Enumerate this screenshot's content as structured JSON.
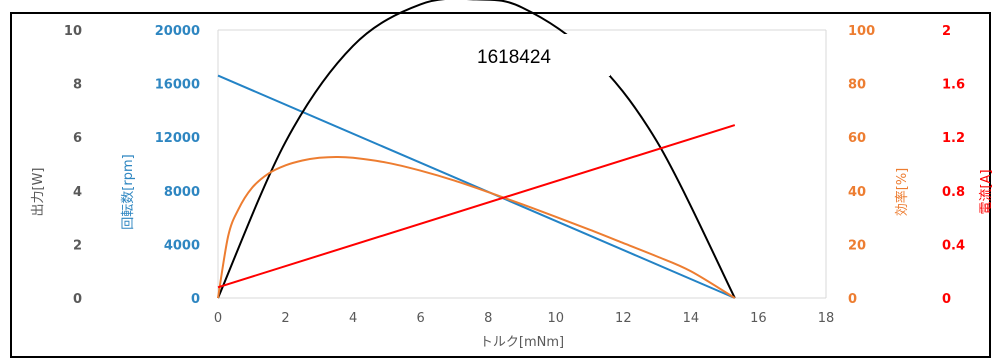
{
  "chart_data": {
    "type": "line",
    "title": "1618424",
    "xlabel": "トルク[mNm]",
    "xlim": [
      0,
      18
    ],
    "x_ticks": [
      "0",
      "2",
      "4",
      "6",
      "8",
      "10",
      "12",
      "14",
      "16",
      "18"
    ],
    "axes": {
      "power": {
        "label": "出力[W]",
        "range": [
          0,
          10
        ],
        "ticks": [
          "0",
          "2",
          "4",
          "6",
          "8",
          "10"
        ],
        "color": "#595959"
      },
      "speed": {
        "label": "回転数[rpm]",
        "range": [
          0,
          20000
        ],
        "ticks": [
          "0",
          "4000",
          "8000",
          "12000",
          "16000",
          "20000"
        ],
        "color": "#2E86C1"
      },
      "efficiency": {
        "label": "効率[%]",
        "range": [
          0,
          100
        ],
        "ticks": [
          "0",
          "20",
          "40",
          "60",
          "80",
          "100"
        ],
        "color": "#ED7D31"
      },
      "current": {
        "label": "電流[A]",
        "range": [
          0,
          2
        ],
        "ticks": [
          "0",
          "0.4",
          "0.8",
          "1.2",
          "1.6",
          "2"
        ],
        "color": "#FF0000"
      }
    },
    "series": [
      {
        "axis": "speed",
        "color": "#2383C6",
        "x": [
          0,
          15.3
        ],
        "y": [
          16600,
          0
        ]
      },
      {
        "axis": "power",
        "color": "#000000",
        "x": [
          0,
          2,
          4,
          6,
          7.65,
          9,
          11,
          13,
          15.3
        ],
        "y": [
          0,
          5.83,
          9.41,
          10.96,
          11.14,
          10.84,
          9.09,
          5.83,
          0
        ]
      },
      {
        "axis": "efficiency",
        "color": "#ED7D31",
        "x": [
          0,
          0.3,
          0.6,
          1,
          1.5,
          2,
          2.5,
          3,
          3.5,
          4,
          5,
          6,
          7,
          8,
          9,
          10,
          11,
          12,
          13,
          14,
          15.3
        ],
        "y": [
          0,
          23,
          33,
          41,
          46.5,
          49.5,
          51.3,
          52.3,
          52.6,
          52.3,
          50.5,
          47.5,
          43.8,
          39.5,
          35,
          30.3,
          25.5,
          20.5,
          15.5,
          10,
          0
        ]
      },
      {
        "axis": "current",
        "color": "#FF0000",
        "x": [
          0,
          15.3
        ],
        "y": [
          0.08,
          1.29
        ]
      }
    ],
    "grid": false
  }
}
